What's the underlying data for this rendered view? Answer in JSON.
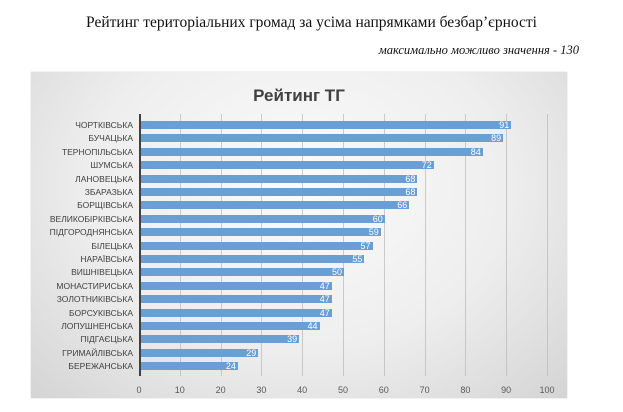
{
  "page": {
    "title": "Рейтинг територіальних громад за усіма напрямками безбар’єрності",
    "subtitle": "максимально можливо значення - 130"
  },
  "chart_data": {
    "type": "bar",
    "orientation": "horizontal",
    "title": "Рейтинг ТГ",
    "xlabel": "",
    "ylabel": "",
    "xlim": [
      0,
      100
    ],
    "x_ticks": [
      0,
      10,
      20,
      30,
      40,
      50,
      60,
      70,
      80,
      90,
      100
    ],
    "grid": true,
    "legend": null,
    "bar_color": "#6a9fd6",
    "data_labels": true,
    "categories": [
      "ЧОРТКІВСЬКА",
      "БУЧАЦЬКА",
      "ТЕРНОПІЛЬСЬКА",
      "ШУМСЬКА",
      "ЛАНОВЕЦЬКА",
      "ЗБАРАЗЬКА",
      "БОРЩІВСЬКА",
      "ВЕЛИКОБІРКІВСЬКА",
      "ПІДГОРОДНЯНСЬКА",
      "БІЛЕЦЬКА",
      "НАРАЇВСЬКА",
      "ВИШНІВЕЦЬКА",
      "МОНАСТИРИСЬКА",
      "ЗОЛОТНИКІВСЬКА",
      "БОРСУКІВСЬКА",
      "ЛОПУШНЕНСЬКА",
      "ПІДГАЄЦЬКА",
      "ГРИМАЙЛІВСЬКА",
      "БЕРЕЖАНСЬКА"
    ],
    "values": [
      91,
      89,
      84,
      72,
      68,
      68,
      66,
      60,
      59,
      57,
      55,
      50,
      47,
      47,
      47,
      44,
      39,
      29,
      24
    ]
  }
}
